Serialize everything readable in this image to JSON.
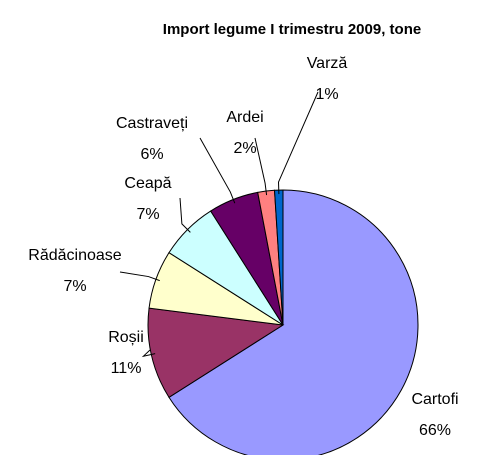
{
  "chart_data": {
    "type": "pie",
    "title": "Import legume I trimestru 2009, tone",
    "categories": [
      "Cartofi",
      "Roșii",
      "Rădăcinoase",
      "Ceapă",
      "Castraveți",
      "Ardei",
      "Varză"
    ],
    "values": [
      66,
      11,
      7,
      7,
      6,
      2,
      1
    ],
    "value_labels": [
      "66%",
      "11%",
      "7%",
      "7%",
      "6%",
      "2%",
      "1%"
    ],
    "colors": [
      "#9999ff",
      "#993366",
      "#ffffcc",
      "#ccffff",
      "#660066",
      "#ff8080",
      "#0066cc"
    ]
  }
}
